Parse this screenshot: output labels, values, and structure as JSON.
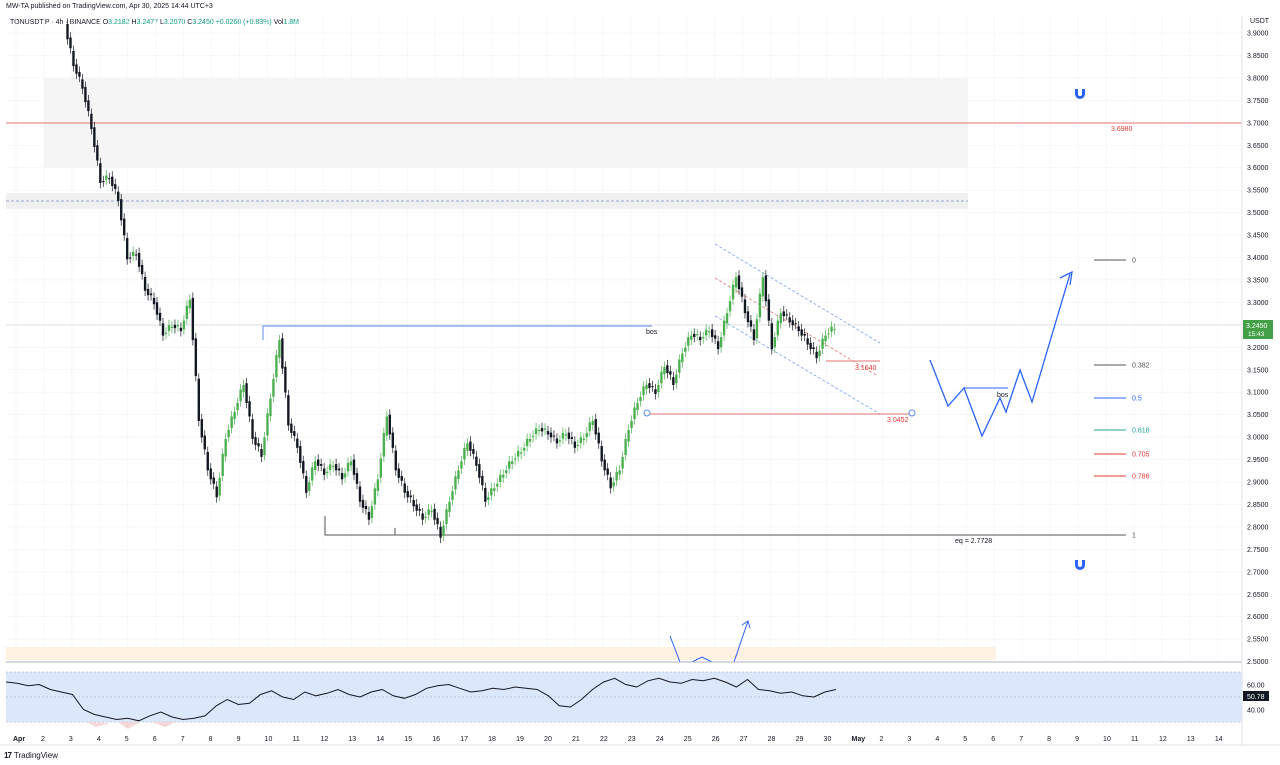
{
  "header": {
    "publish_info": "MW-TA published on TradingView.com, Apr 30, 2025 14:44 UTC+3",
    "symbol": "TONUSDT.P · 4h · BINANCE",
    "ohlc": {
      "o_label": "O",
      "o": "3.2182",
      "h_label": "H",
      "h": "3.2477",
      "l_label": "L",
      "l": "3.2070",
      "c_label": "C",
      "c": "3.2450",
      "change": "+0.0268 (+0.83%)",
      "vol_label": "Vol",
      "vol": "1.8M"
    }
  },
  "price_scale": {
    "currency": "USDT",
    "ticks": [
      "3.9000",
      "3.8500",
      "3.8000",
      "3.7500",
      "3.7000",
      "3.6500",
      "3.6000",
      "3.5500",
      "3.5000",
      "3.4500",
      "3.4000",
      "3.3500",
      "3.3000",
      "3.2500",
      "3.2000",
      "3.1500",
      "3.1000",
      "3.0500",
      "3.0000",
      "2.9500",
      "2.9000",
      "2.8500",
      "2.8000",
      "2.7500",
      "2.7000",
      "2.6500",
      "2.6000",
      "2.5500",
      "2.5000"
    ],
    "current_price": "3.2450",
    "countdown": "15:43"
  },
  "time_axis": {
    "labels": [
      "Apr",
      "2",
      "3",
      "4",
      "5",
      "6",
      "7",
      "8",
      "9",
      "10",
      "11",
      "12",
      "13",
      "14",
      "15",
      "16",
      "17",
      "18",
      "19",
      "20",
      "21",
      "22",
      "23",
      "24",
      "25",
      "26",
      "27",
      "28",
      "29",
      "30",
      "May",
      "2",
      "3",
      "4",
      "5",
      "6",
      "7",
      "8",
      "9",
      "10",
      "11",
      "12",
      "13",
      "14"
    ]
  },
  "annotations": {
    "level_3_698": "3.6980",
    "level_3_164": "3.1640",
    "level_3_045": "3.0452",
    "bos_left": "bos",
    "bos_right": "bos",
    "eq_label": "eq = 2.7728"
  },
  "fib": {
    "levels": [
      {
        "label": "0",
        "color": "#555555"
      },
      {
        "label": "0.382",
        "color": "#555555"
      },
      {
        "label": "0.5",
        "color": "#2962ff"
      },
      {
        "label": "0.618",
        "color": "#26a69a"
      },
      {
        "label": "0.705",
        "color": "#e53935"
      },
      {
        "label": "0.786",
        "color": "#e53935"
      },
      {
        "label": "1",
        "color": "#555555"
      }
    ]
  },
  "rsi": {
    "ticks": [
      "60.00",
      "40.00"
    ],
    "current": "50.78"
  },
  "magnet_icons": [
    "magnet-icon",
    "magnet-icon"
  ],
  "footer": {
    "brand": "TradingView",
    "logo": "17"
  },
  "colors": {
    "up": "#4caf50",
    "down": "#131722",
    "red_line": "#e53935",
    "blue": "#2962ff",
    "zone": "#f5f5f5",
    "rsi_band": "#dbe8fb"
  }
}
